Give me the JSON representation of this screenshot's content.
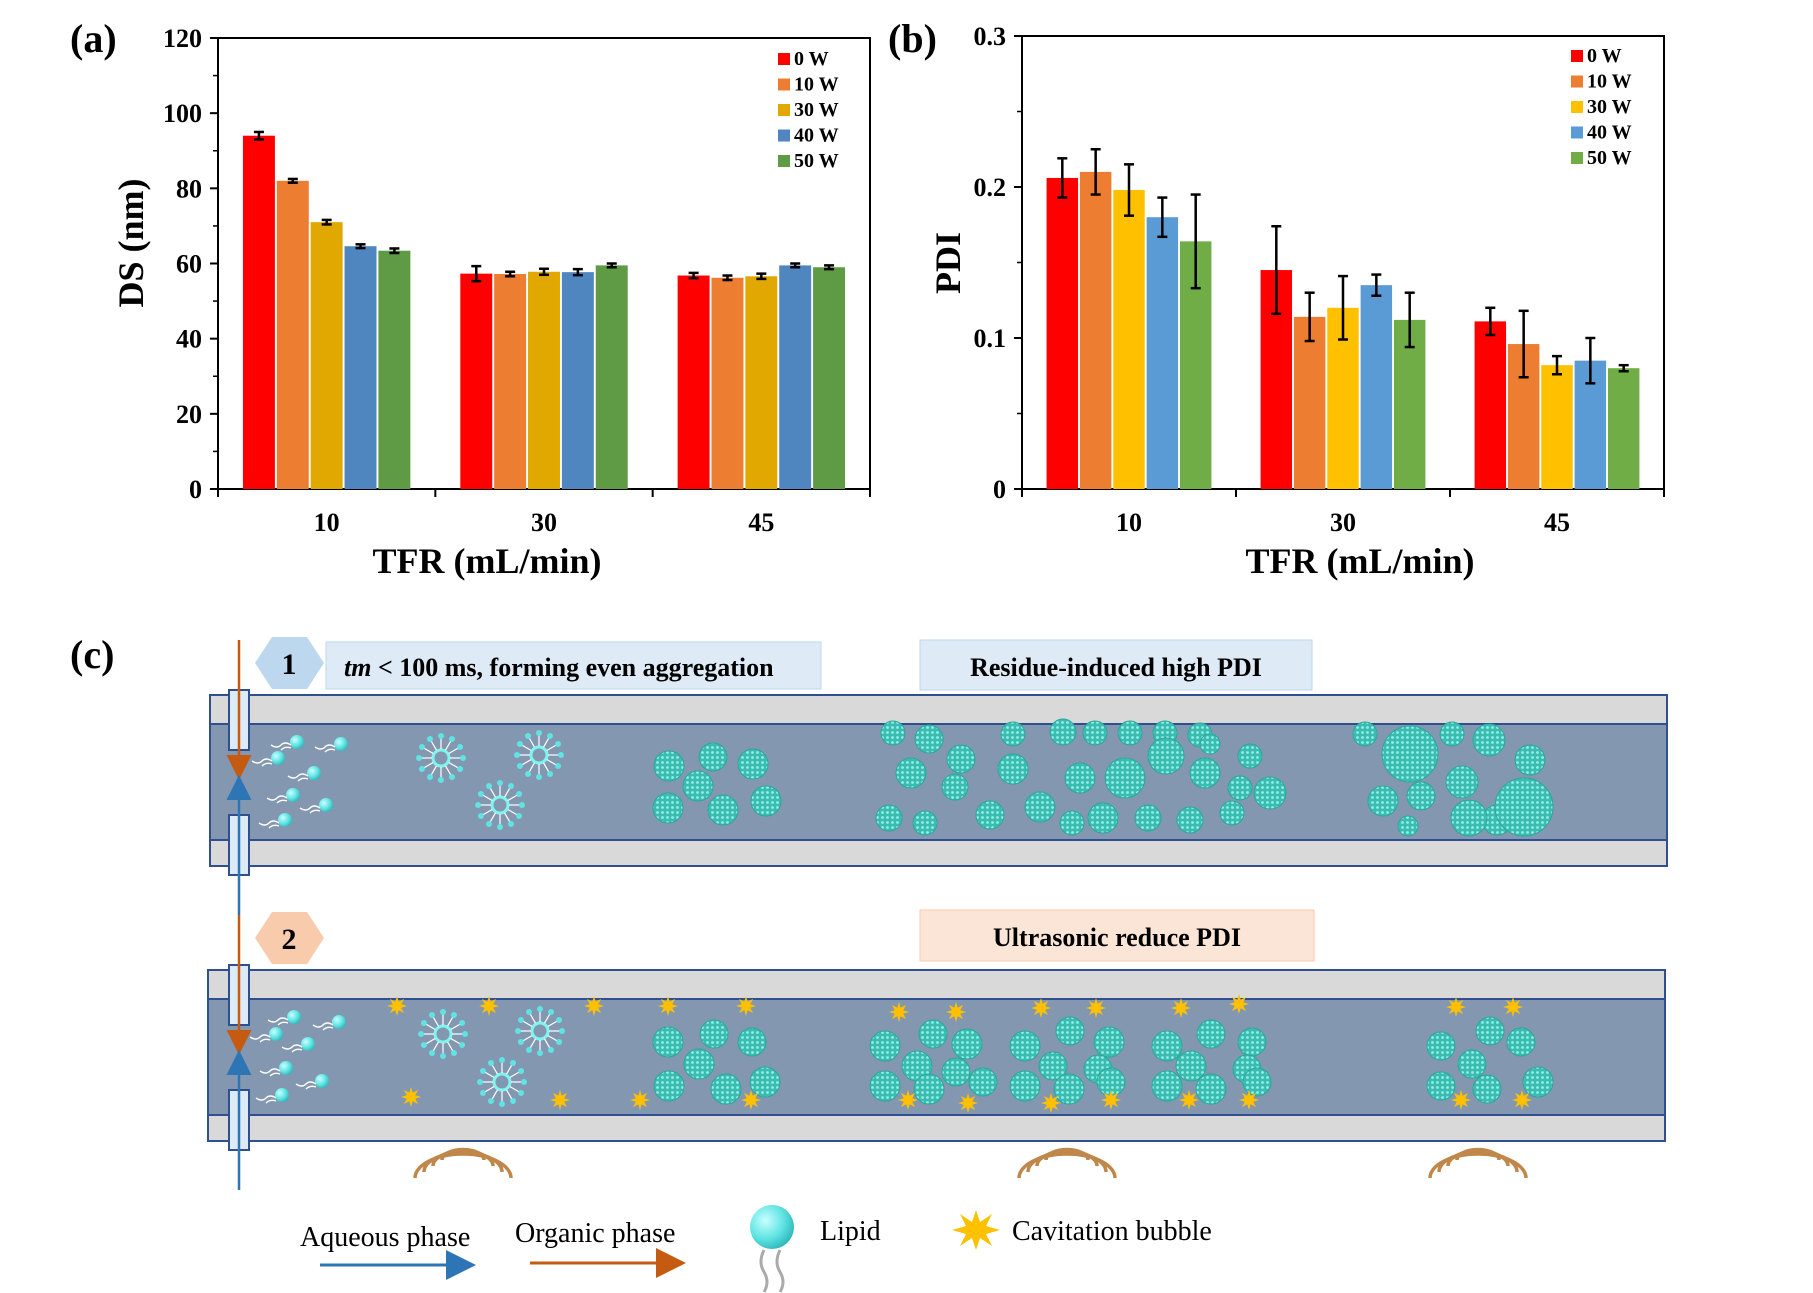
{
  "colors": {
    "series": [
      "#ff0000",
      "#ed7d31",
      "#ffc000",
      "#5b9bd5",
      "#70ad47"
    ],
    "series_a": [
      "#ff0000",
      "#ed7d31",
      "#e0a800",
      "#4f86bf",
      "#5f9a44"
    ],
    "channel_inner": "#8497b0",
    "channel_wall": "#d9d9d9",
    "channel_border": "#2f4f8f",
    "lipid": "#5fe3e3",
    "bubble": "#ffc000",
    "aqueous_arrow": "#2e75b6",
    "organic_arrow": "#c55a11",
    "step1_fill": "#bdd7ee",
    "step2_fill": "#f8cbad",
    "banner1_fill": "#deebf7",
    "banner2_fill": "#fbe5d6",
    "speaker": "#c0874a"
  },
  "panels": {
    "a_label": "(a)",
    "b_label": "(b)",
    "c_label": "(c)"
  },
  "chart_data": [
    {
      "type": "bar",
      "panel": "(a)",
      "categories": [
        "10",
        "30",
        "45"
      ],
      "xlabel": "TFR (mL/min)",
      "ylabel": "DS (nm)",
      "ylim": [
        0,
        120
      ],
      "yticks": [
        "0",
        "20",
        "40",
        "60",
        "80",
        "100",
        "120"
      ],
      "legend_position": "top-right",
      "series": [
        {
          "name": "0 W",
          "values": [
            94.0,
            57.3,
            56.8
          ],
          "errors": [
            1.0,
            2.0,
            0.7
          ]
        },
        {
          "name": "10 W",
          "values": [
            82.0,
            57.2,
            56.2
          ],
          "errors": [
            0.5,
            0.6,
            0.6
          ]
        },
        {
          "name": "30 W",
          "values": [
            71.0,
            57.8,
            56.6
          ],
          "errors": [
            0.6,
            0.8,
            0.7
          ]
        },
        {
          "name": "40 W",
          "values": [
            64.6,
            57.7,
            59.5
          ],
          "errors": [
            0.5,
            0.8,
            0.5
          ]
        },
        {
          "name": "50 W",
          "values": [
            63.4,
            59.5,
            59.0
          ],
          "errors": [
            0.6,
            0.5,
            0.5
          ]
        }
      ]
    },
    {
      "type": "bar",
      "panel": "(b)",
      "categories": [
        "10",
        "30",
        "45"
      ],
      "xlabel": "TFR (mL/min)",
      "ylabel": "PDI",
      "ylim": [
        0,
        0.3
      ],
      "yticks": [
        "0",
        "0.1",
        "0.2",
        "0.3"
      ],
      "legend_position": "top-right",
      "series": [
        {
          "name": "0 W",
          "values": [
            0.206,
            0.145,
            0.111
          ],
          "errors": [
            0.013,
            0.029,
            0.009
          ]
        },
        {
          "name": "10 W",
          "values": [
            0.21,
            0.114,
            0.096
          ],
          "errors": [
            0.015,
            0.016,
            0.022
          ]
        },
        {
          "name": "30 W",
          "values": [
            0.198,
            0.12,
            0.082
          ],
          "errors": [
            0.017,
            0.021,
            0.006
          ]
        },
        {
          "name": "40 W",
          "values": [
            0.18,
            0.135,
            0.085
          ],
          "errors": [
            0.013,
            0.007,
            0.015
          ]
        },
        {
          "name": "50 W",
          "values": [
            0.164,
            0.112,
            0.08
          ],
          "errors": [
            0.031,
            0.018,
            0.002
          ]
        }
      ]
    }
  ],
  "diagram": {
    "step1": {
      "number": "1",
      "italic_prefix": "tm",
      "text": " < 100 ms, forming even aggregation"
    },
    "banner1": "Residue-induced high PDI",
    "step2": {
      "number": "2"
    },
    "banner2": "Ultrasonic reduce PDI",
    "legend": {
      "aqueous": "Aqueous phase",
      "organic": "Organic phase",
      "lipid": "Lipid",
      "bubble": "Cavitation bubble"
    }
  }
}
